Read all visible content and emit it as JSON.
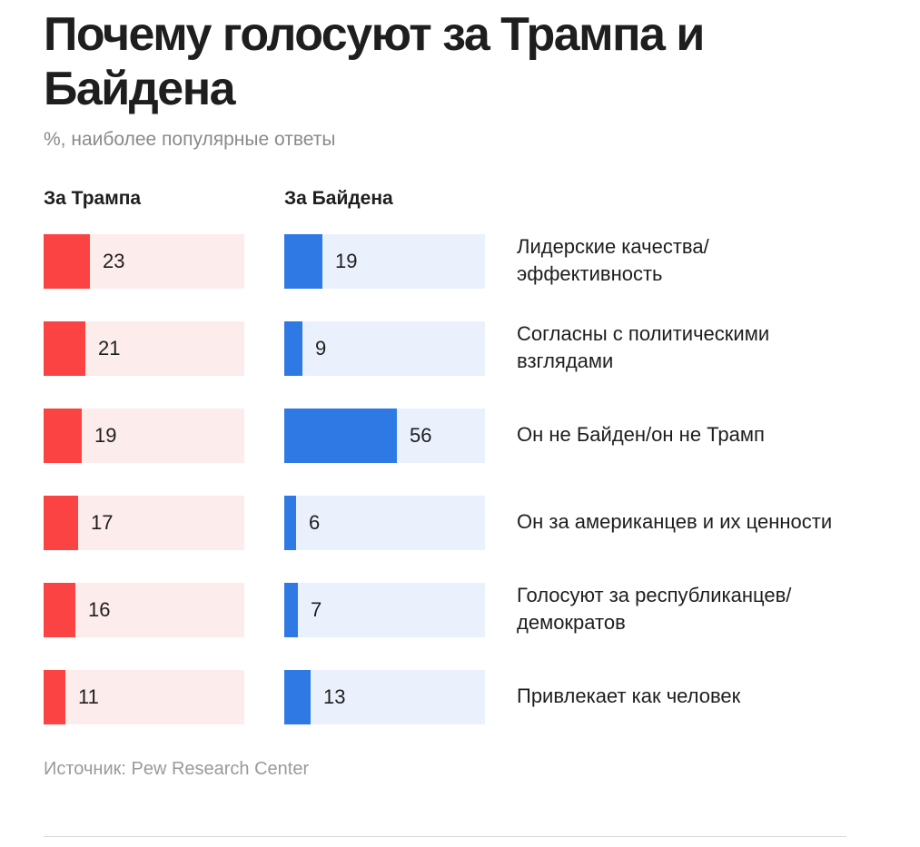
{
  "header": {
    "title": "Почему голосуют за Трампа и Байдена",
    "subtitle": "%, наиболее популярные ответы"
  },
  "footer": {
    "source": "Источник: Pew Research Center"
  },
  "colors": {
    "trump": "#fc4343",
    "trump_track": "#fdecec",
    "biden": "#2f79e5",
    "biden_track": "#eaf1fd"
  },
  "chart_data": {
    "type": "bar",
    "orientation": "horizontal",
    "title": "Почему голосуют за Трампа и Байдена",
    "subtitle": "%, наиболее популярные ответы",
    "xlim": [
      0,
      100
    ],
    "grid": false,
    "categories": [
      "Лидерские качества/\nэффективность",
      "Согласны с политическими\nвзглядами",
      "Он не Байден/он не Трамп",
      "Он за американцев и их ценности",
      "Голосуют за республиканцев/\nдемократов",
      "Привлекает как человек"
    ],
    "series": [
      {
        "name": "За Трампа",
        "values": [
          23,
          21,
          19,
          17,
          16,
          11
        ]
      },
      {
        "name": "За Байдена",
        "values": [
          19,
          9,
          56,
          6,
          7,
          13
        ]
      }
    ]
  }
}
